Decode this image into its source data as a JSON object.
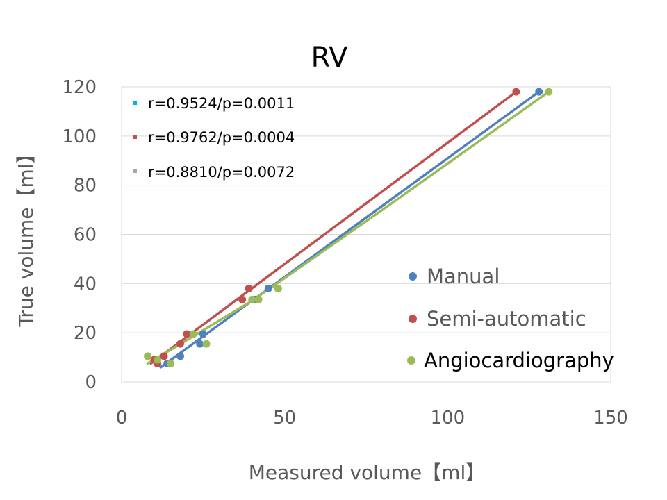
{
  "chart_data": {
    "type": "scatter",
    "title": "RV",
    "xlabel": "Measured volume【ml】",
    "ylabel": "True volume【ml】",
    "xlim": [
      0,
      150
    ],
    "ylim": [
      0,
      120
    ],
    "xticks": [
      0,
      50,
      100,
      150
    ],
    "yticks": [
      0,
      20,
      40,
      60,
      80,
      100,
      120
    ],
    "grid": "horizontal",
    "legend_position": "bottom-right",
    "annotations": [
      {
        "text": "r=0.9524/p=0.0011",
        "color": "#00B0F0"
      },
      {
        "text": "r=0.9762/p=0.0004",
        "color": "#C0504D"
      },
      {
        "text": "r=0.8810/p=0.0072",
        "color": "#A6A6A6"
      }
    ],
    "series": [
      {
        "name": "Manual",
        "color": "#4F81BD",
        "points": [
          [
            14,
            7.5
          ],
          [
            15,
            7.5
          ],
          [
            18,
            10.5
          ],
          [
            24,
            15.5
          ],
          [
            25,
            19.5
          ],
          [
            41,
            33.5
          ],
          [
            45,
            38
          ],
          [
            48,
            38
          ],
          [
            128,
            118
          ]
        ],
        "trendline": [
          [
            12,
            6
          ],
          [
            128,
            118
          ]
        ]
      },
      {
        "name": "Semi-automatic",
        "color": "#C0504D",
        "points": [
          [
            10,
            9
          ],
          [
            11,
            7.5
          ],
          [
            13,
            10.5
          ],
          [
            18,
            15.5
          ],
          [
            20,
            19.5
          ],
          [
            37,
            33.5
          ],
          [
            39,
            38
          ],
          [
            121,
            118
          ]
        ],
        "trendline": [
          [
            9,
            7.5
          ],
          [
            121,
            118
          ]
        ]
      },
      {
        "name": "Angiocardiography",
        "color": "#9BBB59",
        "points": [
          [
            8,
            10.5
          ],
          [
            11,
            9
          ],
          [
            15,
            7.5
          ],
          [
            22,
            19.5
          ],
          [
            26,
            15.5
          ],
          [
            40,
            33.5
          ],
          [
            42,
            33.5
          ],
          [
            48,
            38
          ],
          [
            131,
            118
          ]
        ],
        "trendline": [
          [
            8,
            7.5
          ],
          [
            20,
            17
          ],
          [
            40,
            33
          ],
          [
            80,
            70
          ],
          [
            131,
            118
          ]
        ]
      }
    ]
  }
}
